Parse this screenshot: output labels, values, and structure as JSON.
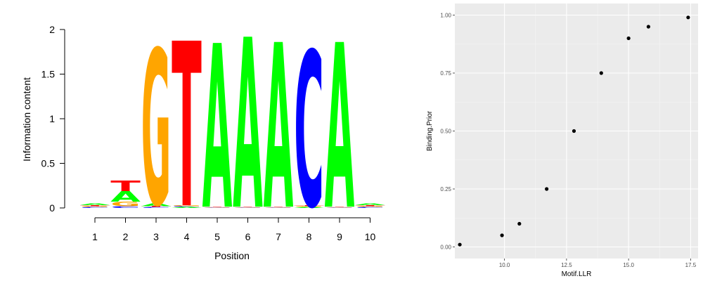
{
  "chart_data": [
    {
      "type": "sequence-logo",
      "xlabel": "Position",
      "ylabel": "Information content",
      "ylim": [
        0,
        2
      ],
      "y_ticks": [
        "0",
        "0.5",
        "1",
        "1.5",
        "2"
      ],
      "x_ticks": [
        "1",
        "2",
        "3",
        "4",
        "5",
        "6",
        "7",
        "8",
        "9",
        "10"
      ],
      "colors": {
        "A": "#00ff00",
        "C": "#0000ff",
        "G": "#ffa500",
        "T": "#ff0000"
      },
      "stacks": [
        [
          [
            "C",
            0.01
          ],
          [
            "G",
            0.01
          ],
          [
            "T",
            0.01
          ],
          [
            "A",
            0.02
          ]
        ],
        [
          [
            "C",
            0.02
          ],
          [
            "G",
            0.05
          ],
          [
            "A",
            0.12
          ],
          [
            "T",
            0.12
          ]
        ],
        [
          [
            "C",
            0.01
          ],
          [
            "T",
            0.01
          ],
          [
            "A",
            0.03
          ],
          [
            "G",
            1.75
          ]
        ],
        [
          [
            "A",
            0.01
          ],
          [
            "C",
            0.01
          ],
          [
            "G",
            0.01
          ],
          [
            "T",
            1.86
          ]
        ],
        [
          [
            "C",
            0.005
          ],
          [
            "G",
            0.005
          ],
          [
            "T",
            0.005
          ],
          [
            "A",
            1.85
          ]
        ],
        [
          [
            "C",
            0.005
          ],
          [
            "G",
            0.005
          ],
          [
            "T",
            0.005
          ],
          [
            "A",
            1.92
          ]
        ],
        [
          [
            "C",
            0.005
          ],
          [
            "G",
            0.005
          ],
          [
            "T",
            0.005
          ],
          [
            "A",
            1.86
          ]
        ],
        [
          [
            "A",
            0.01
          ],
          [
            "G",
            0.01
          ],
          [
            "T",
            0.01
          ],
          [
            "C",
            1.75
          ]
        ],
        [
          [
            "C",
            0.005
          ],
          [
            "G",
            0.005
          ],
          [
            "T",
            0.005
          ],
          [
            "A",
            1.86
          ]
        ],
        [
          [
            "C",
            0.01
          ],
          [
            "G",
            0.01
          ],
          [
            "T",
            0.01
          ],
          [
            "A",
            0.02
          ]
        ]
      ]
    },
    {
      "type": "scatter",
      "xlabel": "Motif.LLR",
      "ylabel": "Binding.Prior",
      "xlim": [
        8,
        17.8
      ],
      "ylim": [
        -0.05,
        1.05
      ],
      "x_ticks": [
        10.0,
        12.5,
        15.0,
        17.5
      ],
      "x_tick_labels": [
        "10.0",
        "12.5",
        "15.0",
        "17.5"
      ],
      "y_ticks": [
        0,
        0.25,
        0.5,
        0.75,
        1
      ],
      "y_tick_labels": [
        "0.00",
        "0.25",
        "0.50",
        "0.75",
        "1.00"
      ],
      "grid": true,
      "points": [
        {
          "x": 8.2,
          "y": 0.01
        },
        {
          "x": 9.9,
          "y": 0.05
        },
        {
          "x": 10.6,
          "y": 0.1
        },
        {
          "x": 11.7,
          "y": 0.25
        },
        {
          "x": 12.8,
          "y": 0.5
        },
        {
          "x": 13.9,
          "y": 0.75
        },
        {
          "x": 15.0,
          "y": 0.9
        },
        {
          "x": 15.8,
          "y": 0.95
        },
        {
          "x": 17.4,
          "y": 0.99
        }
      ]
    }
  ]
}
